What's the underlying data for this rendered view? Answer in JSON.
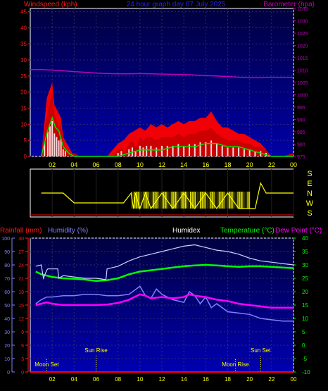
{
  "header": {
    "wind_label": "Windspeed (kph)",
    "title": "24 hour graph day  07 July 2025",
    "baro_label": "Barometer (hpa)"
  },
  "colors": {
    "wind": "#ff1a1a",
    "gust": "#ff0000",
    "avg": "#00e000",
    "baro": "#c000c0",
    "dir": "#ffff00",
    "temp": "#00ff00",
    "humidity": "#8080ff",
    "humidex": "#ffffff",
    "dew": "#ff00ff",
    "rain": "#ff0000",
    "left_axis": "#d0a0ff",
    "right_axis_wind": "#ff00ff",
    "right_axis_temp": "#00ff00",
    "hour_labels": "#ffff00",
    "panel_top": "#000050",
    "panel_bottom": "#0000b0"
  },
  "chart_data": [
    {
      "type": "line",
      "title": "24 hour graph day  07 July 2025",
      "ylabel": "Windspeed (kph)",
      "y2label": "Barometer (hpa)",
      "x_tick_labels": [
        "02",
        "04",
        "06",
        "08",
        "10",
        "12",
        "14",
        "16",
        "18",
        "20",
        "22",
        "00"
      ],
      "ylim": [
        0,
        46
      ],
      "y_ticks": [
        0,
        5,
        10,
        15,
        20,
        25,
        30,
        35,
        40,
        45
      ],
      "y2lim": [
        975,
        1035
      ],
      "y2_ticks": [
        975,
        980,
        985,
        990,
        995,
        1000,
        1005,
        1010,
        1015,
        1020,
        1025,
        1030,
        1035
      ],
      "series": [
        {
          "name": "Windspeed (kph)",
          "x": [
            1.0,
            1.3,
            1.6,
            1.8,
            2.0,
            2.2,
            2.4,
            2.6,
            2.8,
            3.0,
            3.2,
            3.5,
            4.0,
            4.5,
            5.0,
            5.5,
            6.0,
            6.5,
            7.0,
            7.5,
            8.0,
            8.3,
            8.6,
            9.0,
            9.3,
            9.6,
            10.0,
            10.3,
            10.6,
            11.0,
            11.5,
            12.0,
            12.5,
            13.0,
            13.5,
            14.0,
            14.5,
            15.0,
            15.5,
            16.0,
            16.5,
            17.0,
            17.5,
            18.0,
            18.5,
            19.0,
            19.5,
            20.0,
            20.5,
            21.0,
            21.5,
            22.0,
            23.0,
            24.0
          ],
          "values": [
            0,
            8,
            14,
            17,
            20,
            13,
            11,
            9,
            10,
            4,
            3,
            0,
            1,
            0,
            0,
            0,
            0,
            0,
            0,
            0,
            2,
            3,
            1,
            4,
            5,
            3,
            6,
            5,
            6,
            6,
            5,
            6,
            6,
            6,
            7,
            6,
            7,
            7,
            8,
            8,
            9,
            7,
            6,
            5,
            5,
            5,
            4,
            4,
            3,
            3,
            2,
            0,
            0,
            1
          ]
        },
        {
          "name": "Gust",
          "x": [
            1.0,
            1.5,
            1.8,
            2.0,
            2.2,
            2.5,
            2.8,
            3.0,
            3.5,
            4.0,
            5.0,
            7.0,
            8.0,
            8.5,
            9.0,
            9.5,
            10.0,
            10.5,
            11.0,
            11.5,
            12.0,
            12.5,
            13.0,
            13.5,
            14.0,
            14.5,
            15.0,
            15.5,
            16.0,
            16.5,
            17.0,
            17.5,
            18.0,
            18.5,
            19.0,
            19.5,
            20.0,
            20.5,
            21.0,
            22.0,
            24.0
          ],
          "values": [
            0,
            18,
            21,
            23,
            16,
            14,
            12,
            6,
            3,
            0,
            0,
            0,
            4,
            5,
            7,
            8,
            9,
            8,
            10,
            9,
            10,
            9,
            10,
            11,
            10,
            11,
            11,
            12,
            12,
            14,
            11,
            9,
            9,
            8,
            7,
            7,
            6,
            5,
            4,
            0,
            0
          ]
        },
        {
          "name": "Average",
          "x": [
            1.0,
            1.5,
            1.8,
            2.0,
            2.3,
            2.6,
            3.0,
            3.5,
            4.0,
            8.0,
            9.0,
            10.0,
            11.0,
            12.0,
            13.0,
            14.0,
            15.0,
            16.0,
            17.0,
            18.0,
            19.0,
            20.0,
            21.0,
            22.0,
            24.0
          ],
          "values": [
            0,
            7,
            10,
            12,
            9,
            8,
            3,
            1,
            0,
            0,
            1,
            2,
            2,
            2,
            3,
            3,
            3,
            4,
            4,
            3,
            3,
            2,
            1,
            0,
            0
          ]
        },
        {
          "name": "Barometer (hpa)",
          "axis": "y2",
          "x": [
            0,
            1,
            2,
            3,
            4,
            5,
            6,
            7,
            8,
            9,
            10,
            11,
            12,
            13,
            14,
            15,
            16,
            17,
            18,
            19,
            20,
            21,
            22,
            23,
            24
          ],
          "values": [
            1010.2,
            1010.2,
            1010.0,
            1009.7,
            1009.4,
            1009.1,
            1008.8,
            1008.6,
            1008.5,
            1008.5,
            1008.6,
            1008.5,
            1008.4,
            1008.3,
            1008.2,
            1008.0,
            1007.8,
            1007.6,
            1007.4,
            1007.1,
            1006.9,
            1006.9,
            1007.0,
            1007.0,
            1007.0
          ]
        }
      ]
    },
    {
      "type": "line",
      "ylabel": "Wind direction",
      "y_tick_labels": [
        "S",
        "E",
        "N",
        "W",
        "S"
      ],
      "series": [
        {
          "name": "Direction",
          "x": [
            1.0,
            1.1,
            1.3,
            2.5,
            3.0,
            4.0,
            4.5,
            7.0,
            8.0,
            8.5,
            9.2,
            9.4,
            9.6,
            10.0,
            10.5,
            11.0,
            12.0,
            13.0,
            14.0,
            15.0,
            16.0,
            17.0,
            18.0,
            19.0,
            20.0,
            20.5,
            21.0,
            21.5,
            22.0,
            23.0,
            24.0
          ],
          "values": [
            "N",
            "N",
            "N",
            "N",
            "N",
            "W",
            "W",
            "W",
            "W",
            "W",
            "N",
            "S",
            "N",
            "S",
            "N",
            "S",
            "N",
            "S",
            "N",
            "S",
            "N",
            "S",
            "N",
            "S",
            "S",
            "S",
            "E",
            "N",
            "N",
            "N",
            "N"
          ]
        }
      ]
    },
    {
      "type": "line",
      "x_tick_labels": [
        "02",
        "04",
        "06",
        "08",
        "10",
        "12",
        "14",
        "16",
        "18",
        "20",
        "22",
        "00"
      ],
      "left_axes": {
        "rainfall_label": "Rainfall (mm)",
        "rainfall_ticks": [
          0,
          3,
          6,
          9,
          12,
          15,
          18,
          21,
          24,
          27,
          30
        ],
        "humidity_label": "Humidity (%)",
        "humidity_ticks": [
          0,
          10,
          20,
          30,
          40,
          50,
          60,
          70,
          80,
          90,
          100
        ]
      },
      "humidex_label": "Humidex",
      "temp_label": "Temperature (°C)",
      "dew_label": "Dew Point (°C)",
      "temp_ylim": [
        -10,
        40
      ],
      "temp_ticks": [
        -10,
        -5,
        0,
        5,
        10,
        15,
        20,
        25,
        30,
        35,
        40
      ],
      "series": [
        {
          "name": "Humidex",
          "x": [
            0.5,
            1.0,
            1.2,
            1.5,
            1.6,
            2.5,
            2.6,
            3.0,
            4.0,
            5.0,
            6.0,
            6.9,
            7.0,
            8.0,
            9.0,
            10.0,
            11.0,
            12.0,
            13.0,
            14.0,
            15.0,
            16.0,
            17.0,
            18.0,
            19.0,
            20.0,
            21.0,
            22.0,
            23.0,
            24.0
          ],
          "values": [
            29.5,
            30.0,
            25.0,
            28.0,
            28.5,
            28.5,
            25.0,
            26.0,
            25.5,
            25.0,
            25.0,
            24.5,
            28.5,
            29.5,
            31.5,
            33.0,
            34.0,
            35.0,
            36.0,
            37.0,
            37.5,
            36.5,
            35.5,
            35.0,
            34.0,
            32.5,
            31.5,
            31.0,
            30.5,
            30.0
          ]
        },
        {
          "name": "Temperature (°C)",
          "x": [
            0.5,
            1.0,
            1.5,
            2.0,
            3.0,
            4.0,
            5.0,
            6.0,
            7.0,
            8.0,
            9.0,
            10.0,
            11.0,
            12.0,
            13.0,
            14.0,
            15.0,
            16.0,
            17.0,
            18.0,
            19.0,
            20.0,
            21.0,
            22.0,
            23.0,
            24.0
          ],
          "values": [
            27.5,
            26.5,
            26.0,
            25.5,
            25.0,
            24.8,
            24.5,
            24.0,
            24.3,
            25.0,
            26.5,
            27.5,
            28.0,
            28.5,
            29.0,
            29.5,
            29.8,
            30.0,
            29.8,
            29.5,
            29.3,
            29.5,
            29.5,
            29.3,
            29.0,
            28.8
          ]
        },
        {
          "name": "Dew Point (°C)",
          "x": [
            0.5,
            1.0,
            1.5,
            2.0,
            3.0,
            4.0,
            5.0,
            6.0,
            7.0,
            8.0,
            9.0,
            10.0,
            10.5,
            11.0,
            12.0,
            13.0,
            14.0,
            14.5,
            15.0,
            16.0,
            17.0,
            18.0,
            19.0,
            20.0,
            21.0,
            22.0,
            23.0,
            24.0
          ],
          "values": [
            15.0,
            15.5,
            16.0,
            15.5,
            15.0,
            15.0,
            15.0,
            15.0,
            15.2,
            15.8,
            17.0,
            19.0,
            18.5,
            17.5,
            18.0,
            17.5,
            18.0,
            19.0,
            18.5,
            18.0,
            17.0,
            16.5,
            15.5,
            15.0,
            14.5,
            14.0,
            14.0,
            14.0
          ]
        },
        {
          "name": "Humidity (%)",
          "axis": "humidity",
          "x": [
            0.5,
            1.0,
            1.5,
            2.0,
            3.0,
            4.0,
            5.0,
            6.0,
            7.0,
            8.0,
            9.0,
            10.0,
            10.5,
            11.0,
            11.5,
            12.0,
            13.0,
            14.0,
            14.5,
            15.0,
            15.5,
            16.0,
            16.5,
            17.0,
            18.0,
            19.0,
            20.0,
            21.0,
            22.0,
            23.0,
            24.0
          ],
          "values": [
            51,
            54,
            56,
            56,
            57,
            57,
            58,
            58,
            57,
            57,
            58,
            64,
            57,
            55,
            62,
            58,
            54,
            52,
            60,
            57,
            51,
            56,
            48,
            51,
            45,
            44,
            43,
            40,
            39,
            38,
            38
          ]
        },
        {
          "name": "Rainfall (mm)",
          "axis": "rainfall",
          "x": [
            0,
            24
          ],
          "values": [
            0,
            0
          ]
        }
      ],
      "annotations": [
        {
          "text": "Sun Rise",
          "x": 6.0
        },
        {
          "text": "Moon Set",
          "x": 1.5
        },
        {
          "text": "Sun Set",
          "x": 21.0
        },
        {
          "text": "Moon Rise",
          "x": 18.7
        }
      ]
    }
  ]
}
